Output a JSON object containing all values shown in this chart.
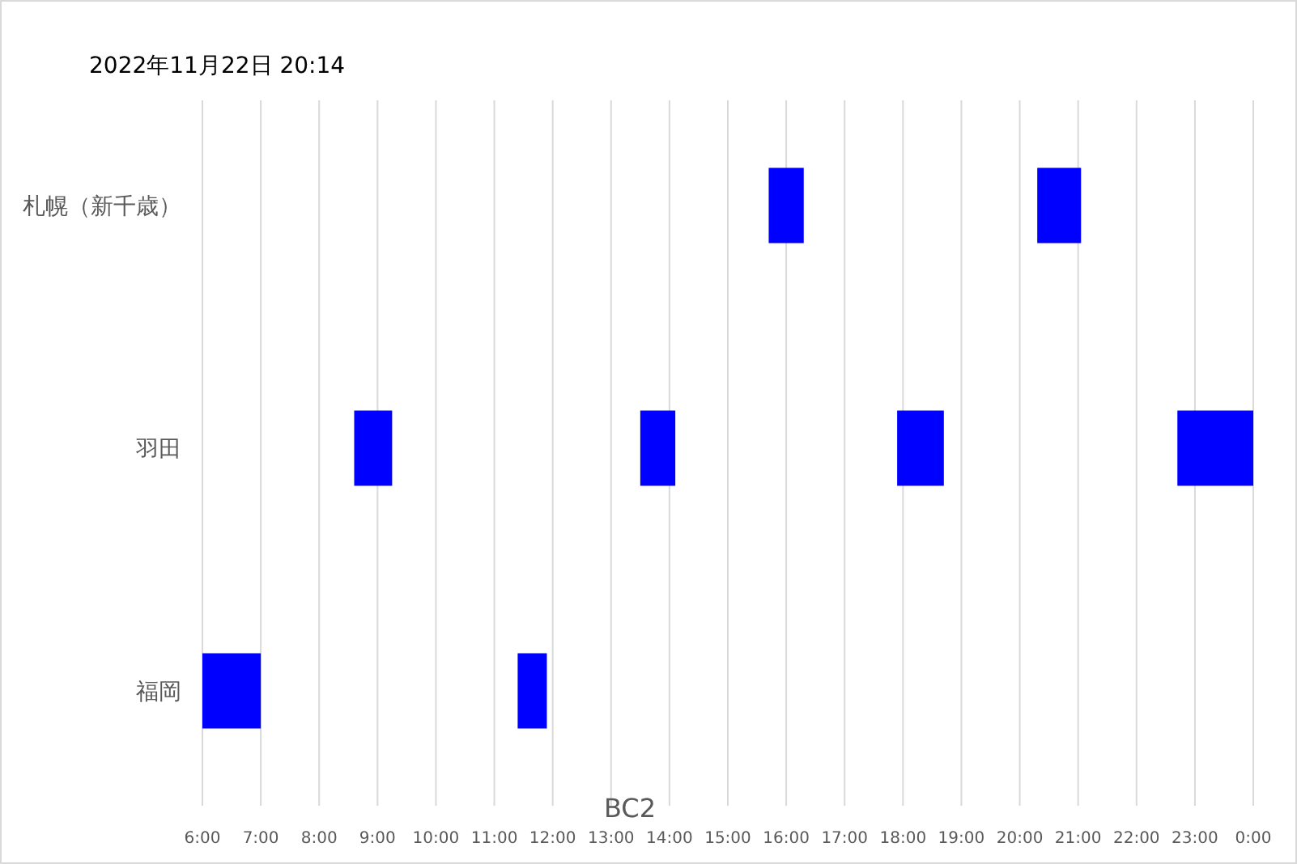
{
  "chart_data": {
    "type": "bar",
    "orientation": "horizontal",
    "title": "2022年11月22日 20:14",
    "xlabel": "BC2",
    "categories": [
      "札幌（新千歳）",
      "羽田",
      "福岡"
    ],
    "series": [
      {
        "color": "#0000ff",
        "base": [
          15.7,
          8.6,
          6
        ],
        "values": [
          0.6,
          0.65,
          1
        ]
      },
      {
        "color": "#0000ff",
        "base": [
          20.3,
          13.5,
          11.4
        ],
        "values": [
          0.75,
          0.6,
          0.5
        ]
      },
      {
        "color": "#0000ff",
        "base": [
          null,
          17.9,
          null
        ],
        "values": [
          null,
          0.8,
          null
        ]
      },
      {
        "color": "#0000ff",
        "base": [
          null,
          22.7,
          null
        ],
        "values": [
          null,
          1.3,
          null
        ]
      }
    ],
    "xlim": [
      6,
      24
    ],
    "xticks": [
      {
        "value": 6,
        "label": "6:00"
      },
      {
        "value": 7,
        "label": "7:00"
      },
      {
        "value": 8,
        "label": "8:00"
      },
      {
        "value": 9,
        "label": "9:00"
      },
      {
        "value": 10,
        "label": "10:00"
      },
      {
        "value": 11,
        "label": "11:00"
      },
      {
        "value": 12,
        "label": "12:00"
      },
      {
        "value": 13,
        "label": "13:00"
      },
      {
        "value": 14,
        "label": "14:00"
      },
      {
        "value": 15,
        "label": "15:00"
      },
      {
        "value": 16,
        "label": "16:00"
      },
      {
        "value": 17,
        "label": "17:00"
      },
      {
        "value": 18,
        "label": "18:00"
      },
      {
        "value": 19,
        "label": "19:00"
      },
      {
        "value": 20,
        "label": "20:00"
      },
      {
        "value": 21,
        "label": "21:00"
      },
      {
        "value": 22,
        "label": "22:00"
      },
      {
        "value": 23,
        "label": "23:00"
      },
      {
        "value": 24,
        "label": "0:00"
      }
    ],
    "grid": "x"
  }
}
